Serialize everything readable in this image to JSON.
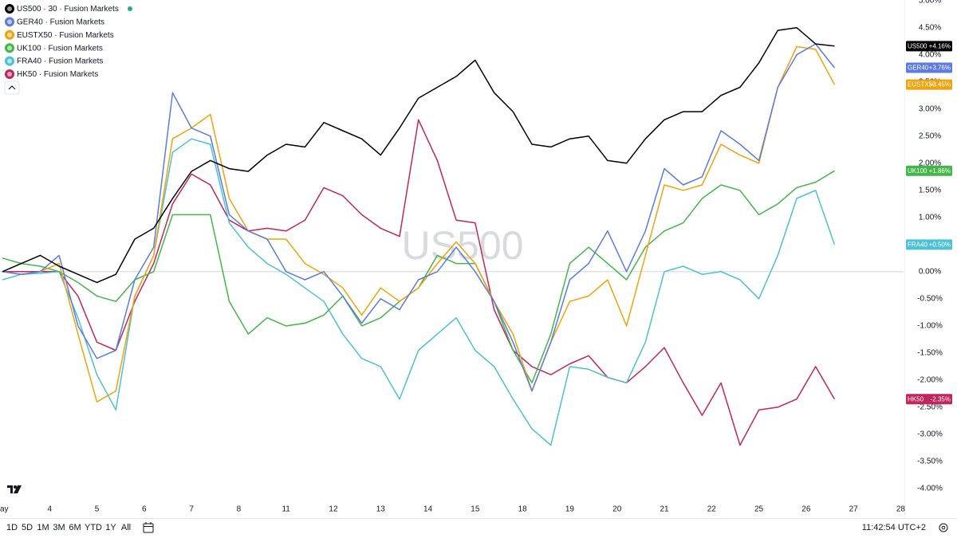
{
  "chart_data": {
    "type": "line",
    "watermark": "US500",
    "x": [
      -1.0,
      -0.6,
      -0.2,
      0.2,
      0.6,
      1.0,
      1.4,
      1.8,
      2.2,
      2.6,
      3.0,
      3.4,
      3.8,
      4.2,
      4.6,
      5.0,
      5.4,
      5.8,
      6.2,
      6.6,
      7.0,
      7.4,
      7.8,
      8.2,
      8.6,
      9.0,
      9.4,
      9.8,
      10.2,
      10.6,
      11.0,
      11.4,
      11.8,
      12.2,
      12.6,
      13.0,
      13.4,
      13.8,
      14.2,
      14.6,
      15.0,
      15.4,
      15.8,
      16.2,
      16.6
    ],
    "xlim": [
      -1.05,
      18.06
    ],
    "xticks": [
      {
        "value": -1,
        "label": "ay"
      },
      {
        "value": 0,
        "label": "4"
      },
      {
        "value": 1,
        "label": "5"
      },
      {
        "value": 2,
        "label": "6"
      },
      {
        "value": 3,
        "label": "7"
      },
      {
        "value": 4,
        "label": "8"
      },
      {
        "value": 5,
        "label": "11"
      },
      {
        "value": 6,
        "label": "12"
      },
      {
        "value": 7,
        "label": "13"
      },
      {
        "value": 8,
        "label": "14"
      },
      {
        "value": 9,
        "label": "15"
      },
      {
        "value": 10,
        "label": "18"
      },
      {
        "value": 11,
        "label": "19"
      },
      {
        "value": 12,
        "label": "20"
      },
      {
        "value": 13,
        "label": "21"
      },
      {
        "value": 14,
        "label": "22"
      },
      {
        "value": 15,
        "label": "25"
      },
      {
        "value": 16,
        "label": "26"
      },
      {
        "value": 17,
        "label": "27"
      },
      {
        "value": 18,
        "label": "28"
      }
    ],
    "ylim": [
      -4.28,
      5.01
    ],
    "yticks": [
      {
        "value": -4,
        "label": "-4.00%"
      },
      {
        "value": -3.5,
        "label": "-3.50%"
      },
      {
        "value": -3,
        "label": "-3.00%"
      },
      {
        "value": -2.5,
        "label": "-2.50%"
      },
      {
        "value": -2,
        "label": "-2.00%"
      },
      {
        "value": -1.5,
        "label": "-1.50%"
      },
      {
        "value": -1,
        "label": "-1.00%"
      },
      {
        "value": -0.5,
        "label": "-0.50%"
      },
      {
        "value": 0,
        "label": "0.00%"
      },
      {
        "value": 0.5,
        "label": "0.50%"
      },
      {
        "value": 1,
        "label": "1.00%"
      },
      {
        "value": 1.5,
        "label": "1.50%"
      },
      {
        "value": 2,
        "label": "2.00%"
      },
      {
        "value": 2.5,
        "label": "2.50%"
      },
      {
        "value": 3,
        "label": "3.00%"
      },
      {
        "value": 3.5,
        "label": "3.50%"
      },
      {
        "value": 4,
        "label": "4.00%"
      },
      {
        "value": 4.5,
        "label": "4.50%"
      },
      {
        "value": 5,
        "label": "5.00%"
      }
    ],
    "grid": false,
    "zero_line": true,
    "series": [
      {
        "name": "US500",
        "legend": "US500 · 30 · Fusion Markets",
        "color": "#000000",
        "last_label": "+4.16%",
        "values": [
          0,
          0.15,
          0.3,
          0.1,
          -0.05,
          -0.2,
          -0.05,
          0.6,
          0.8,
          1.35,
          1.85,
          2.05,
          1.9,
          1.85,
          2.15,
          2.35,
          2.3,
          2.75,
          2.6,
          2.45,
          2.15,
          2.65,
          3.2,
          3.4,
          3.6,
          3.9,
          3.3,
          2.95,
          2.35,
          2.3,
          2.45,
          2.5,
          2.05,
          2.0,
          2.45,
          2.8,
          2.95,
          2.95,
          3.25,
          3.4,
          3.85,
          4.45,
          4.5,
          4.2,
          4.16
        ]
      },
      {
        "name": "GER40",
        "legend": "GER40 · Fusion Markets",
        "color": "#5b7be0",
        "last_label": "+3.76%",
        "values": [
          0,
          -0.05,
          0,
          0.3,
          -1.0,
          -1.6,
          -1.45,
          -0.15,
          0.45,
          3.3,
          2.65,
          2.5,
          1.05,
          0.75,
          0.6,
          0,
          -0.15,
          0,
          -0.45,
          -0.95,
          -0.5,
          -0.7,
          -0.15,
          0,
          0.45,
          0,
          -0.55,
          -1.3,
          -2.2,
          -1.3,
          -0.15,
          0.15,
          0.75,
          0,
          0.75,
          1.9,
          1.6,
          1.75,
          2.6,
          2.35,
          2.05,
          3.4,
          4.0,
          4.2,
          3.76
        ]
      },
      {
        "name": "EUSTX50",
        "legend": "EUSTX50 · Fusion Markets",
        "color": "#f0a30a",
        "last_label": "+3.45%",
        "values": [
          0,
          -0.05,
          0,
          0.15,
          -1.15,
          -2.4,
          -2.2,
          -0.45,
          0.3,
          2.45,
          2.65,
          2.9,
          1.35,
          0.75,
          0.6,
          0.6,
          0.15,
          -0.05,
          -0.3,
          -0.8,
          -0.3,
          -0.55,
          -0.3,
          0.15,
          0.55,
          0.15,
          -0.55,
          -1.15,
          -2.2,
          -1.3,
          -0.55,
          -0.45,
          -0.15,
          -1.0,
          0.3,
          1.6,
          1.5,
          1.6,
          2.35,
          2.15,
          2.0,
          3.4,
          4.15,
          4.1,
          3.45
        ]
      },
      {
        "name": "UK100",
        "legend": "UK100 · Fusion Markets",
        "color": "#43b649",
        "last_label": "+1.86%",
        "values": [
          0.25,
          0.15,
          0.1,
          0,
          -0.2,
          -0.45,
          -0.55,
          -0.15,
          0,
          1.05,
          1.05,
          1.05,
          -0.55,
          -1.15,
          -0.85,
          -1.0,
          -0.95,
          -0.8,
          -0.45,
          -1.0,
          -0.85,
          -0.55,
          -0.3,
          0.3,
          0.15,
          0.15,
          -0.55,
          -1.45,
          -2.05,
          -1.15,
          0.15,
          0.45,
          0.15,
          -0.15,
          0.45,
          0.75,
          0.9,
          1.35,
          1.6,
          1.5,
          1.05,
          1.25,
          1.55,
          1.65,
          1.86
        ]
      },
      {
        "name": "FRA40",
        "legend": "FRA40 · Fusion Markets",
        "color": "#4cc0d4",
        "last_label": "+0.50%",
        "values": [
          -0.15,
          -0.05,
          -0.03,
          0,
          -0.85,
          -1.9,
          -2.55,
          -0.45,
          0.3,
          2.2,
          2.45,
          2.35,
          0.9,
          0.45,
          0.15,
          -0.05,
          -0.3,
          -0.55,
          -1.15,
          -1.6,
          -1.75,
          -2.35,
          -1.45,
          -1.15,
          -0.85,
          -1.45,
          -1.75,
          -2.35,
          -2.9,
          -3.2,
          -1.75,
          -1.8,
          -1.95,
          -2.05,
          -1.3,
          0,
          0.1,
          -0.05,
          0,
          -0.15,
          -0.5,
          0.3,
          1.35,
          1.5,
          0.5
        ]
      },
      {
        "name": "HK50",
        "legend": "HK50 · Fusion Markets",
        "color": "#c2255c",
        "last_label": "-2.35%",
        "values": [
          0,
          0,
          0,
          0,
          -0.45,
          -1.3,
          -1.45,
          -0.55,
          0.15,
          1.25,
          1.8,
          1.6,
          0.95,
          0.75,
          0.8,
          0.75,
          0.95,
          1.55,
          1.4,
          1.05,
          0.8,
          0.65,
          2.8,
          2.05,
          0.95,
          0.9,
          -0.7,
          -1.45,
          -1.75,
          -1.9,
          -1.7,
          -1.55,
          -1.95,
          -2.05,
          -1.75,
          -1.4,
          -2.05,
          -2.65,
          -2.05,
          -3.2,
          -2.55,
          -2.5,
          -2.35,
          -1.75,
          -2.35
        ]
      }
    ]
  },
  "toolbar": {
    "ranges": [
      "1D",
      "5D",
      "1M",
      "3M",
      "6M",
      "YTD",
      "1Y",
      "All"
    ],
    "time": "11:42:54 UTC+2"
  }
}
